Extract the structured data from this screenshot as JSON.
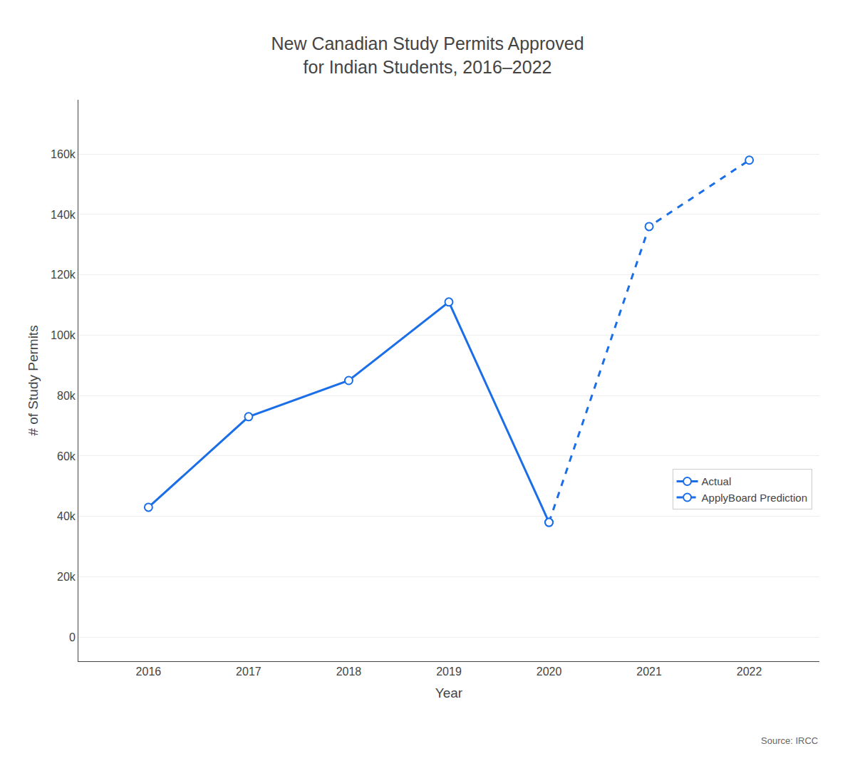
{
  "chart_data": {
    "type": "line",
    "title": "New Canadian Study Permits Approved\nfor Indian Students, 2016–2022",
    "x_label": "Year",
    "y_label": "# of Study Permits",
    "series": [
      {
        "name": "Actual",
        "color": "#1a6ee8",
        "line_style": "solid",
        "marker": "circle",
        "x": [
          2016,
          2017,
          2018,
          2019,
          2020
        ],
        "values": [
          43000,
          73000,
          85000,
          111000,
          38000
        ]
      },
      {
        "name": "ApplyBoard Prediction",
        "color": "#1a6ee8",
        "line_style": "dashed",
        "marker": "circle",
        "x": [
          2020,
          2021,
          2022
        ],
        "values": [
          38000,
          136000,
          158000
        ]
      }
    ],
    "xlim": [
      2015.3,
      2022.7
    ],
    "xticks": [
      2016,
      2017,
      2018,
      2019,
      2020,
      2021,
      2022
    ],
    "ylim": [
      -8000,
      178000
    ],
    "yticks": [
      0,
      {
        "value": 20000,
        "label": "20k"
      },
      {
        "value": 40000,
        "label": "40k"
      },
      {
        "value": 60000,
        "label": "60k"
      },
      {
        "value": 80000,
        "label": "80k"
      },
      {
        "value": 100000,
        "label": "100k"
      },
      {
        "value": 120000,
        "label": "120k"
      },
      {
        "value": 140000,
        "label": "140k"
      },
      {
        "value": 160000,
        "label": "160k"
      }
    ],
    "grid": "y",
    "legend": "lower right",
    "annotations": [
      "Source: IRCC"
    ]
  }
}
